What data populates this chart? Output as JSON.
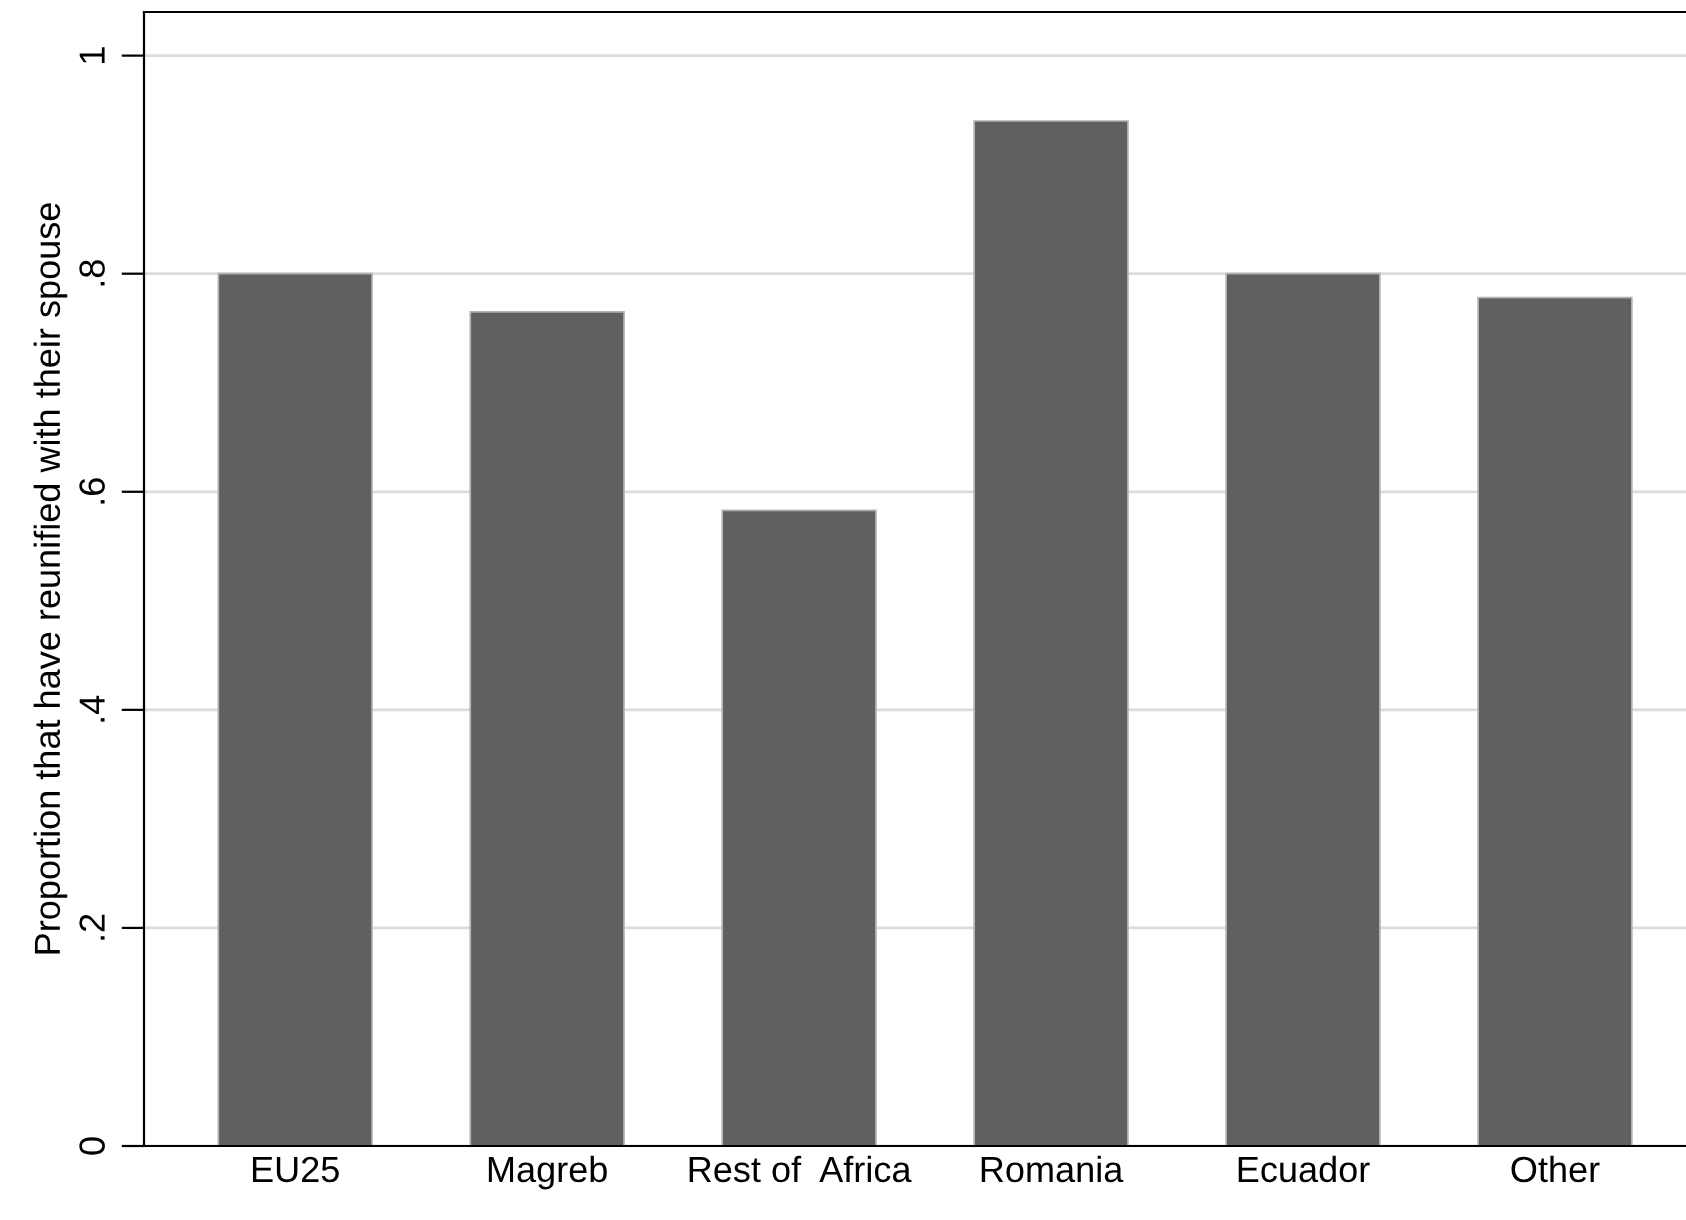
{
  "chart_data": {
    "type": "bar",
    "ylabel": "Proportion that have reunified with their spouse",
    "categories": [
      "EU25",
      "Magreb",
      "Rest of  Africa",
      "Romania",
      "Ecuador",
      "Other"
    ],
    "values": [
      0.8,
      0.765,
      0.583,
      0.94,
      0.8,
      0.778
    ],
    "color": "#606060",
    "ylim": [
      0,
      1.04
    ],
    "yticks": [
      {
        "value": 0,
        "label": "0"
      },
      {
        "value": 0.2,
        "label": ".2"
      },
      {
        "value": 0.4,
        "label": ".4"
      },
      {
        "value": 0.6,
        "label": ".6"
      },
      {
        "value": 0.8,
        "label": ".8"
      },
      {
        "value": 1,
        "label": "1"
      }
    ],
    "grid": "y",
    "legend": false
  }
}
